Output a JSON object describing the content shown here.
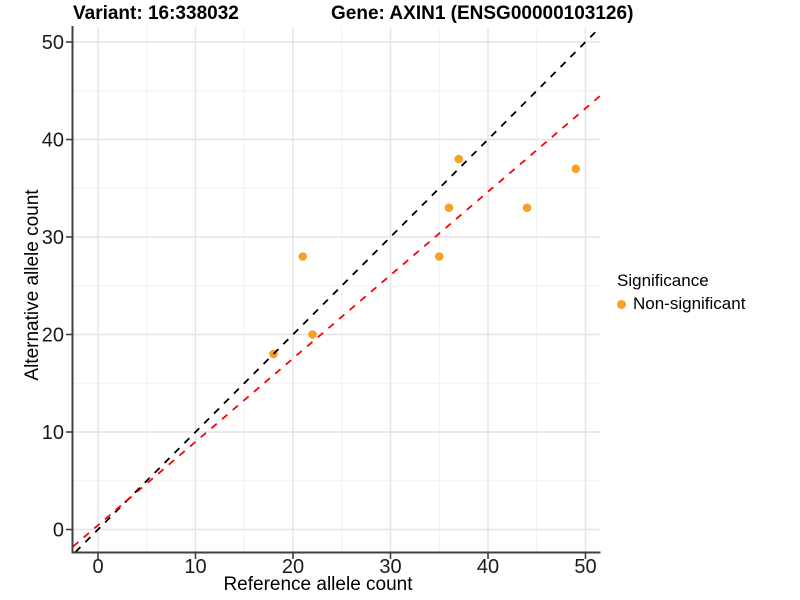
{
  "header": {
    "variant_title": "Variant: 16:338032",
    "gene_title": "Gene: AXIN1 (ENSG00000103126)"
  },
  "chart_data": {
    "type": "scatter",
    "xlabel": "Reference allele count",
    "ylabel": "Alternative allele count",
    "xlim": [
      -2.56,
      51.49
    ],
    "ylim": [
      -2.31,
      51.54
    ],
    "x_ticks": [
      0,
      10,
      20,
      30,
      40,
      50
    ],
    "y_ticks": [
      0,
      10,
      20,
      30,
      40,
      50
    ],
    "x_minor_ticks": [
      5,
      15,
      25,
      35,
      45
    ],
    "y_minor_ticks": [
      5,
      15,
      25,
      35,
      45
    ],
    "grid": true,
    "legend_position": "right",
    "points": [
      {
        "x": 18,
        "y": 18,
        "significance": "Non-significant"
      },
      {
        "x": 21,
        "y": 28,
        "significance": "Non-significant"
      },
      {
        "x": 22,
        "y": 20,
        "significance": "Non-significant"
      },
      {
        "x": 35,
        "y": 28,
        "significance": "Non-significant"
      },
      {
        "x": 36,
        "y": 33,
        "significance": "Non-significant"
      },
      {
        "x": 37,
        "y": 38,
        "significance": "Non-significant"
      },
      {
        "x": 44,
        "y": 33,
        "significance": "Non-significant"
      },
      {
        "x": 49,
        "y": 37,
        "significance": "Non-significant"
      }
    ],
    "lines": [
      {
        "name": "identity-line",
        "slope": 1,
        "intercept": 0,
        "color": "#000000",
        "dash": "7 7"
      },
      {
        "name": "fit-line",
        "slope": 0.855,
        "intercept": 0.44,
        "color": "#FF0000",
        "dash": "7 7"
      }
    ],
    "legend": {
      "title": "Significance",
      "entries": [
        {
          "label": "Non-significant",
          "color": "#F7A022"
        }
      ]
    },
    "point_color": "#F7A022"
  },
  "colors": {
    "point_orange": "#F7A022",
    "fit_line_red": "#FF0000",
    "identity_line_black": "#000000",
    "grid_major": "#E3E3E3",
    "grid_minor": "#F0F0F0",
    "axis_line": "#404040",
    "tick_text": "#1A1A1A"
  }
}
